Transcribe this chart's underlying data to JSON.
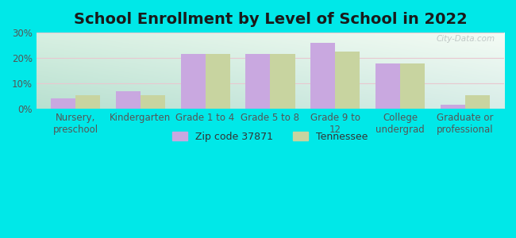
{
  "title": "School Enrollment by Level of School in 2022",
  "categories": [
    "Nursery,\npreschool",
    "Kindergarten",
    "Grade 1 to 4",
    "Grade 5 to 8",
    "Grade 9 to\n12",
    "College\nundergrad",
    "Graduate or\nprofessional"
  ],
  "zip_values": [
    4.0,
    7.0,
    21.5,
    21.5,
    26.0,
    18.0,
    1.5
  ],
  "tn_values": [
    5.5,
    5.5,
    21.5,
    21.5,
    22.5,
    18.0,
    5.5
  ],
  "zip_color": "#c9a8e0",
  "tn_color": "#c8d4a0",
  "background_outer": "#00e8e8",
  "ylabel_ticks": [
    "0%",
    "10%",
    "20%",
    "30%"
  ],
  "ytick_values": [
    0,
    10,
    20,
    30
  ],
  "ylim": [
    0,
    30
  ],
  "bar_width": 0.38,
  "legend_zip_label": "Zip code 37871",
  "legend_tn_label": "Tennessee",
  "watermark": "City-Data.com",
  "title_fontsize": 14,
  "tick_fontsize": 8.5,
  "legend_fontsize": 9,
  "grid_color": "#e8c8d0",
  "bg_top_left": "#d8f0e4",
  "bg_top_right": "#f0faf0",
  "bg_bot_left": "#b0e0d8",
  "bg_bot_right": "#e0f0e8"
}
